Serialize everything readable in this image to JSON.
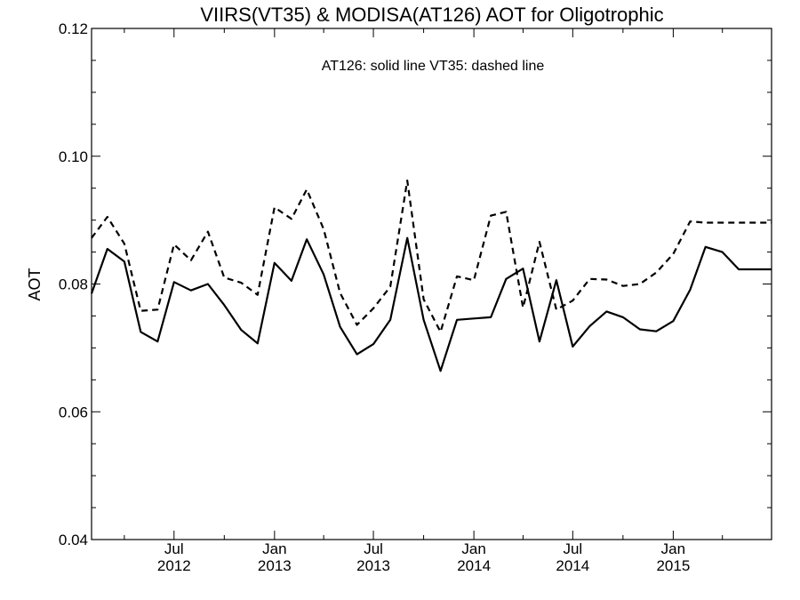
{
  "chart_data": {
    "type": "line",
    "title": "VIIRS(VT35) & MODISA(AT126)  AOT for Oligotrophic",
    "annotation": "AT126: solid line   VT35: dashed line",
    "xlabel": "",
    "ylabel": "AOT",
    "ylim": [
      0.04,
      0.12
    ],
    "xlim": [
      "2012-02-01",
      "2015-06-30"
    ],
    "yticks": [
      "0.04",
      "0.06",
      "0.08",
      "0.10",
      "0.12"
    ],
    "xticks": [
      {
        "month": "Jul",
        "year": "2012",
        "date": "2012-07-01"
      },
      {
        "month": "Jan",
        "year": "2013",
        "date": "2013-01-01"
      },
      {
        "month": "Jul",
        "year": "2013",
        "date": "2013-07-01"
      },
      {
        "month": "Jan",
        "year": "2014",
        "date": "2014-01-01"
      },
      {
        "month": "Jul",
        "year": "2014",
        "date": "2014-07-01"
      },
      {
        "month": "Jan",
        "year": "2015",
        "date": "2015-01-01"
      }
    ],
    "grid": false,
    "x": [
      "2012-02-01",
      "2012-03-01",
      "2012-04-01",
      "2012-05-01",
      "2012-06-01",
      "2012-07-01",
      "2012-08-01",
      "2012-09-01",
      "2012-10-01",
      "2012-11-01",
      "2012-12-01",
      "2013-01-01",
      "2013-02-01",
      "2013-03-01",
      "2013-04-01",
      "2013-05-01",
      "2013-06-01",
      "2013-07-01",
      "2013-08-01",
      "2013-09-01",
      "2013-10-01",
      "2013-11-01",
      "2013-12-01",
      "2014-01-01",
      "2014-02-01",
      "2014-03-01",
      "2014-04-01",
      "2014-05-01",
      "2014-06-01",
      "2014-07-01",
      "2014-08-01",
      "2014-09-01",
      "2014-10-01",
      "2014-11-01",
      "2014-12-01",
      "2015-01-01",
      "2015-02-01",
      "2015-03-01",
      "2015-04-01",
      "2015-05-01",
      "2015-06-01",
      "2015-06-30"
    ],
    "series": [
      {
        "name": "AT126",
        "style": "solid",
        "values": [
          0.0785,
          0.0855,
          0.0835,
          0.0725,
          0.071,
          0.0803,
          0.079,
          0.08,
          0.0767,
          0.0728,
          0.0707,
          0.0833,
          0.0805,
          0.087,
          0.0815,
          0.0733,
          0.069,
          0.0706,
          0.0744,
          0.0872,
          0.0744,
          0.0664,
          0.0744,
          0.0746,
          0.0748,
          0.0808,
          0.0824,
          0.071,
          0.0806,
          0.0702,
          0.0734,
          0.0757,
          0.0748,
          0.0729,
          0.0726,
          0.0742,
          0.0791,
          0.0858,
          0.085,
          0.0823,
          0.0823,
          0.0823
        ]
      },
      {
        "name": "VT35",
        "style": "dashed",
        "values": [
          0.0872,
          0.0905,
          0.0863,
          0.0758,
          0.076,
          0.0862,
          0.0837,
          0.0882,
          0.081,
          0.0802,
          0.0783,
          0.092,
          0.0902,
          0.0948,
          0.0886,
          0.0786,
          0.0736,
          0.0762,
          0.0796,
          0.0962,
          0.0776,
          0.0725,
          0.0812,
          0.0806,
          0.0907,
          0.0913,
          0.0763,
          0.0866,
          0.076,
          0.0774,
          0.0808,
          0.0807,
          0.0797,
          0.08,
          0.0818,
          0.0847,
          0.0898,
          0.0896,
          0.0896,
          0.0896,
          0.0896,
          0.0896
        ]
      }
    ],
    "colors": {
      "line": "#000000",
      "axes": "#000000",
      "background": "#ffffff"
    }
  }
}
